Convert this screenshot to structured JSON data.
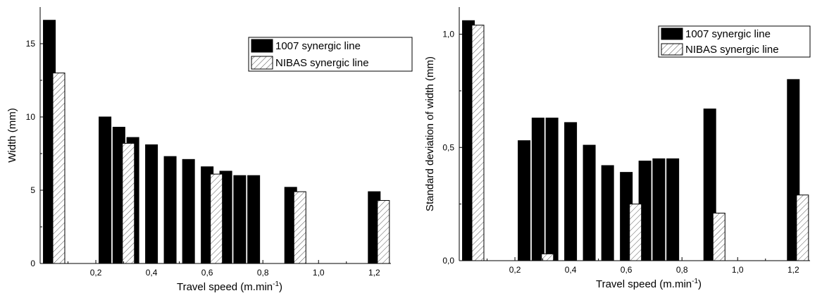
{
  "chart_data": [
    {
      "type": "bar",
      "xlabel": "Travel speed (m.min",
      "xlabel_superscript": "-1",
      "xlabel_suffix": ")",
      "ylabel": "Width (mm)",
      "xlim": [
        0,
        1.26
      ],
      "ylim": [
        0,
        17.5
      ],
      "x_ticks": [
        0.2,
        0.4,
        0.6,
        0.8,
        1.0,
        1.2
      ],
      "x_tick_labels": [
        "0,2",
        "0,4",
        "0,6",
        "0,8",
        "1,0",
        "1,2"
      ],
      "y_ticks": [
        0,
        5,
        10,
        15
      ],
      "y_tick_labels": [
        "0",
        "5",
        "10",
        "15"
      ],
      "legend_position": "top-right",
      "grid": false,
      "series": [
        {
          "name": "1007 synergic line",
          "color": "#000000",
          "pattern": "solid",
          "x": [
            0.033,
            0.233,
            0.283,
            0.333,
            0.4,
            0.467,
            0.533,
            0.6,
            0.667,
            0.717,
            0.767,
            0.9,
            1.2
          ],
          "values": [
            16.6,
            10.0,
            9.3,
            8.6,
            8.1,
            7.3,
            7.1,
            6.6,
            6.3,
            6.0,
            6.0,
            5.2,
            4.9
          ]
        },
        {
          "name": "NIBAS synergic line",
          "color": "#ffffff",
          "pattern": "hatch",
          "x": [
            0.067,
            0.317,
            0.633,
            0.933,
            1.233
          ],
          "values": [
            13.0,
            8.2,
            6.1,
            4.9,
            4.3
          ]
        }
      ]
    },
    {
      "type": "bar",
      "xlabel": "Travel speed (m.min",
      "xlabel_superscript": "-1",
      "xlabel_suffix": ")",
      "ylabel": "Standard deviation of width (mm)",
      "xlim": [
        0,
        1.26
      ],
      "ylim": [
        0,
        1.12
      ],
      "x_ticks": [
        0.2,
        0.4,
        0.6,
        0.8,
        1.0,
        1.2
      ],
      "x_tick_labels": [
        "0,2",
        "0,4",
        "0,6",
        "0,8",
        "1,0",
        "1,2"
      ],
      "y_ticks": [
        0,
        0.5,
        1.0
      ],
      "y_tick_labels": [
        "0,0",
        "0,5",
        "1,0"
      ],
      "legend_position": "top-right",
      "grid": false,
      "series": [
        {
          "name": "1007 synergic line",
          "color": "#000000",
          "pattern": "solid",
          "x": [
            0.033,
            0.233,
            0.283,
            0.333,
            0.4,
            0.467,
            0.533,
            0.6,
            0.667,
            0.717,
            0.767,
            0.9,
            1.2
          ],
          "values": [
            1.06,
            0.53,
            0.63,
            0.63,
            0.61,
            0.51,
            0.42,
            0.39,
            0.44,
            0.45,
            0.45,
            0.67,
            0.8
          ]
        },
        {
          "name": "NIBAS synergic line",
          "color": "#ffffff",
          "pattern": "hatch",
          "x": [
            0.067,
            0.317,
            0.633,
            0.933,
            1.233
          ],
          "values": [
            1.04,
            0.03,
            0.25,
            0.21,
            0.29
          ]
        }
      ]
    }
  ]
}
